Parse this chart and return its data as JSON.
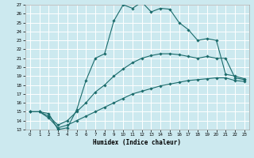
{
  "xlabel": "Humidex (Indice chaleur)",
  "bg_color": "#cce9ef",
  "grid_color": "#ffffff",
  "line_color": "#1a6b6b",
  "xlim": [
    -0.5,
    23.5
  ],
  "ylim": [
    13,
    27
  ],
  "xticks": [
    0,
    1,
    2,
    3,
    4,
    5,
    6,
    7,
    8,
    9,
    10,
    11,
    12,
    13,
    14,
    15,
    16,
    17,
    18,
    19,
    20,
    21,
    22,
    23
  ],
  "yticks": [
    13,
    14,
    15,
    16,
    17,
    18,
    19,
    20,
    21,
    22,
    23,
    24,
    25,
    26,
    27
  ],
  "line1_x": [
    0,
    1,
    2,
    3,
    4,
    5,
    6,
    7,
    8,
    9,
    10,
    11,
    12,
    13,
    14,
    15,
    16,
    17,
    18,
    19,
    20,
    21,
    22,
    23
  ],
  "line1_y": [
    15,
    15,
    14.8,
    13.0,
    13.2,
    15.2,
    18.5,
    21.0,
    21.5,
    25.2,
    27.0,
    26.6,
    27.3,
    26.2,
    26.6,
    26.5,
    25.0,
    24.2,
    23.0,
    23.2,
    23.0,
    19.2,
    19.0,
    18.7
  ],
  "line2_x": [
    0,
    1,
    2,
    3,
    4,
    5,
    6,
    7,
    8,
    9,
    10,
    11,
    12,
    13,
    14,
    15,
    16,
    17,
    18,
    19,
    20,
    21,
    22,
    23
  ],
  "line2_y": [
    15,
    15,
    14.5,
    13.5,
    14.0,
    15.0,
    16.0,
    17.2,
    18.0,
    19.0,
    19.8,
    20.5,
    21.0,
    21.3,
    21.5,
    21.5,
    21.4,
    21.2,
    21.0,
    21.2,
    21.0,
    21.0,
    18.8,
    18.6
  ],
  "line3_x": [
    0,
    1,
    2,
    3,
    4,
    5,
    6,
    7,
    8,
    9,
    10,
    11,
    12,
    13,
    14,
    15,
    16,
    17,
    18,
    19,
    20,
    21,
    22,
    23
  ],
  "line3_y": [
    15,
    15,
    14.3,
    13.2,
    13.5,
    14.0,
    14.5,
    15.0,
    15.5,
    16.0,
    16.5,
    17.0,
    17.3,
    17.6,
    17.9,
    18.1,
    18.3,
    18.5,
    18.6,
    18.7,
    18.8,
    18.8,
    18.5,
    18.4
  ]
}
